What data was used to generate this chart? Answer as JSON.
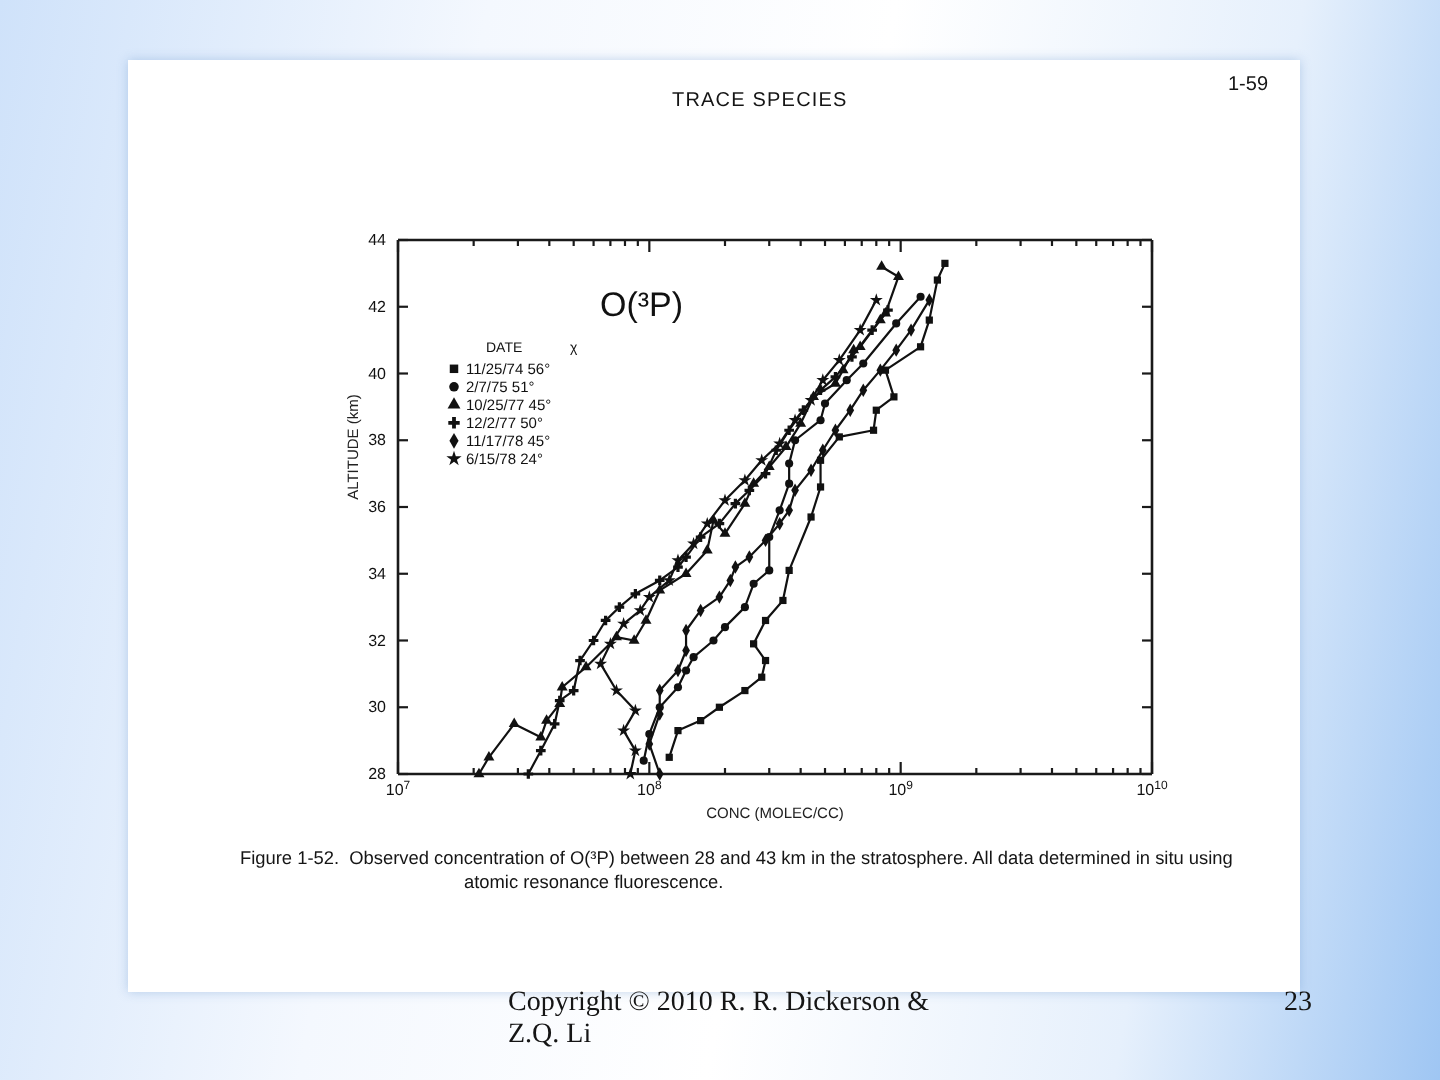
{
  "chart_data": {
    "type": "line",
    "title": "O(³P)",
    "xlabel": "CONC (MOLEC/CC)",
    "ylabel": "ALTITUDE (km)",
    "legend_title": "DATE χ",
    "legend": "top left",
    "log": "x",
    "grid": false,
    "xlim": [
      10000000.0,
      10000000000.0
    ],
    "ylim": [
      28,
      44
    ],
    "xticks": [
      {
        "value": 10000000.0,
        "label": "10$^{7}$"
      },
      {
        "value": 20000000.0,
        "label": null
      },
      {
        "value": 30000000.0,
        "label": null
      },
      {
        "value": 40000000.0,
        "label": null
      },
      {
        "value": 50000000.0,
        "label": null
      },
      {
        "value": 60000000.0,
        "label": null
      },
      {
        "value": 70000000.0,
        "label": null
      },
      {
        "value": 80000000.0,
        "label": null
      },
      {
        "value": 90000000.0,
        "label": null
      },
      {
        "value": 100000000.0,
        "label": "10$^{8}$"
      },
      {
        "value": 200000000.0,
        "label": null
      },
      {
        "value": 300000000.0,
        "label": null
      },
      {
        "value": 400000000.0,
        "label": null
      },
      {
        "value": 500000000.0,
        "label": null
      },
      {
        "value": 600000000.0,
        "label": null
      },
      {
        "value": 700000000.0,
        "label": null
      },
      {
        "value": 800000000.0,
        "label": null
      },
      {
        "value": 900000000.0,
        "label": null
      },
      {
        "value": 1000000000.0,
        "label": "10$^{9}$"
      },
      {
        "value": 2000000000.0,
        "label": null
      },
      {
        "value": 3000000000.0,
        "label": null
      },
      {
        "value": 4000000000.0,
        "label": null
      },
      {
        "value": 5000000000.0,
        "label": null
      },
      {
        "value": 6000000000.0,
        "label": null
      },
      {
        "value": 7000000000.0,
        "label": null
      },
      {
        "value": 8000000000.0,
        "label": null
      },
      {
        "value": 9000000000.0,
        "label": null
      },
      {
        "value": 10000000000.0,
        "label": "10$^{10}$"
      }
    ],
    "yticks": [
      28,
      30,
      32,
      34,
      36,
      38,
      40,
      42,
      44
    ],
    "series": [
      {
        "name": "11/25/74 56°",
        "color": "#111111",
        "marker": "square",
        "x": [
          120000000.0,
          130000000.0,
          160000000.0,
          190000000.0,
          240000000.0,
          280000000.0,
          290000000.0,
          260000000.0,
          290000000.0,
          340000000.0,
          360000000.0,
          440000000.0,
          480000000.0,
          480000000.0,
          570000000.0,
          780000000.0,
          800000000.0,
          940000000.0,
          870000000.0,
          1200000000.0,
          1300000000.0,
          1400000000.0,
          1500000000.0
        ],
        "values": [
          28.5,
          29.3,
          29.6,
          30.0,
          30.5,
          30.9,
          31.4,
          31.9,
          32.6,
          33.2,
          34.1,
          35.7,
          36.6,
          37.4,
          38.1,
          38.3,
          38.9,
          39.3,
          40.1,
          40.8,
          41.6,
          42.8,
          43.3
        ]
      },
      {
        "name": "2/7/75 51°",
        "color": "#111111",
        "marker": "circle",
        "x": [
          1200000000.0,
          960000000.0,
          710000000.0,
          610000000.0,
          500000000.0,
          480000000.0,
          380000000.0,
          360000000.0,
          360000000.0,
          330000000.0,
          300000000.0,
          300000000.0,
          260000000.0,
          240000000.0,
          200000000.0,
          180000000.0,
          150000000.0,
          140000000.0,
          130000000.0,
          110000000.0,
          100000000.0,
          95000000.0
        ],
        "values": [
          42.3,
          41.5,
          40.3,
          39.8,
          39.1,
          38.6,
          38.0,
          37.3,
          36.7,
          35.9,
          35.1,
          34.1,
          33.7,
          33.0,
          32.4,
          32.0,
          31.5,
          31.1,
          30.6,
          30.0,
          29.2,
          28.4
        ]
      },
      {
        "name": "10/25/77 45°",
        "color": "#111111",
        "marker": "triangle",
        "x": [
          840000000.0,
          980000000.0,
          870000000.0,
          830000000.0,
          690000000.0,
          650000000.0,
          590000000.0,
          550000000.0,
          450000000.0,
          400000000.0,
          350000000.0,
          300000000.0,
          260000000.0,
          240000000.0,
          200000000.0,
          180000000.0,
          170000000.0,
          140000000.0,
          110000000.0,
          97000000.0,
          87000000.0,
          74000000.0,
          56000000.0,
          45000000.0,
          44000000.0,
          39000000.0,
          37000000.0,
          29000000.0,
          23000000.0,
          21000000.0
        ],
        "values": [
          43.2,
          42.9,
          41.8,
          41.6,
          40.8,
          40.7,
          40.1,
          39.7,
          39.3,
          38.5,
          37.8,
          37.2,
          36.7,
          36.1,
          35.2,
          35.6,
          34.7,
          34.0,
          33.5,
          32.6,
          32.0,
          32.1,
          31.2,
          30.6,
          30.1,
          29.6,
          29.1,
          29.5,
          28.5,
          28.0
        ]
      },
      {
        "name": "12/2/77 50°",
        "color": "#111111",
        "marker": "cross",
        "x": [
          890000000.0,
          770000000.0,
          640000000.0,
          550000000.0,
          480000000.0,
          410000000.0,
          360000000.0,
          320000000.0,
          290000000.0,
          250000000.0,
          220000000.0,
          190000000.0,
          160000000.0,
          140000000.0,
          130000000.0,
          110000000.0,
          88000000.0,
          76000000.0,
          67000000.0,
          60000000.0,
          53000000.0,
          50000000.0,
          44000000.0,
          42000000.0,
          37000000.0,
          33000000.0
        ],
        "values": [
          41.9,
          41.3,
          40.5,
          39.9,
          39.5,
          38.9,
          38.3,
          37.7,
          37.0,
          36.5,
          36.1,
          35.5,
          35.1,
          34.5,
          34.2,
          33.8,
          33.4,
          33.0,
          32.6,
          32.0,
          31.4,
          30.5,
          30.2,
          29.5,
          28.7,
          28.0
        ]
      },
      {
        "name": "11/17/78 45°",
        "color": "#111111",
        "marker": "diamond",
        "x": [
          1300000000.0,
          1100000000.0,
          960000000.0,
          830000000.0,
          710000000.0,
          630000000.0,
          550000000.0,
          490000000.0,
          440000000.0,
          380000000.0,
          360000000.0,
          330000000.0,
          290000000.0,
          250000000.0,
          220000000.0,
          210000000.0,
          190000000.0,
          160000000.0,
          140000000.0,
          140000000.0,
          130000000.0,
          110000000.0,
          110000000.0,
          100000000.0,
          110000000.0
        ],
        "values": [
          42.2,
          41.3,
          40.7,
          40.1,
          39.5,
          38.9,
          38.3,
          37.7,
          37.1,
          36.5,
          35.9,
          35.5,
          35.0,
          34.5,
          34.2,
          33.8,
          33.3,
          32.9,
          32.3,
          31.7,
          31.1,
          30.5,
          29.8,
          28.9,
          28.0
        ]
      },
      {
        "name": "6/15/78 24°",
        "color": "#111111",
        "marker": "star",
        "x": [
          800000000.0,
          690000000.0,
          570000000.0,
          490000000.0,
          440000000.0,
          380000000.0,
          330000000.0,
          280000000.0,
          240000000.0,
          200000000.0,
          170000000.0,
          150000000.0,
          130000000.0,
          120000000.0,
          100000000.0,
          92000000.0,
          79000000.0,
          70000000.0,
          64000000.0,
          74000000.0,
          88000000.0,
          79000000.0,
          88000000.0,
          84000000.0
        ],
        "values": [
          42.2,
          41.3,
          40.4,
          39.8,
          39.2,
          38.6,
          37.9,
          37.4,
          36.8,
          36.2,
          35.5,
          34.9,
          34.4,
          33.8,
          33.3,
          32.9,
          32.5,
          31.9,
          31.3,
          30.5,
          29.9,
          29.3,
          28.7,
          28.0
        ]
      }
    ],
    "annotations": [
      "TRACE SPECIES",
      "1-59",
      "Figure 1-52.  Observed concentration of O(³P) between 28 and 43 km in the stratosphere. All data determined in situ using atomic resonance fluorescence.",
      "Copyright © 2010  R. R. Dickerson & Z.Q. Li",
      "23"
    ]
  }
}
